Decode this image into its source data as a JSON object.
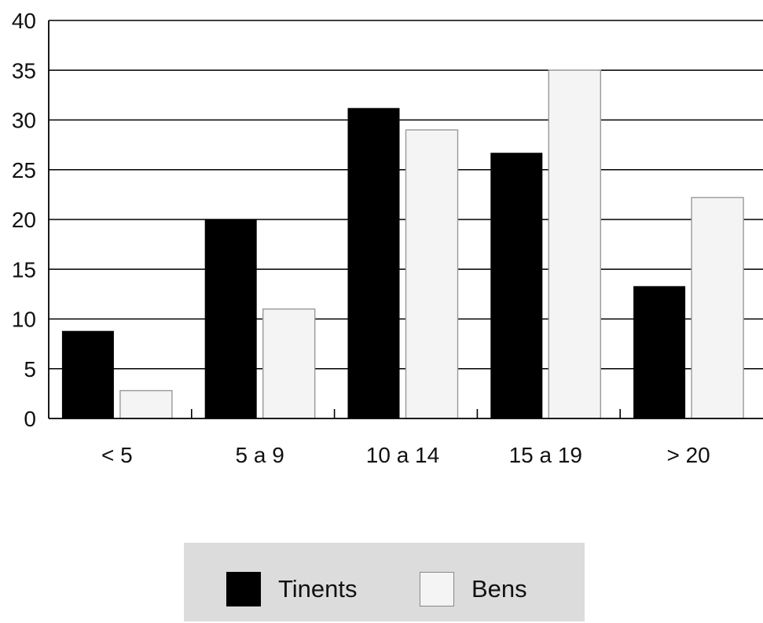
{
  "chart_data": {
    "type": "bar",
    "categories": [
      "< 5",
      "5 a 9",
      "10 a 14",
      "15 a 19",
      "> 20"
    ],
    "series": [
      {
        "name": "Tinents",
        "color": "#000000",
        "values": [
          8.8,
          20,
          31.2,
          26.7,
          13.3
        ]
      },
      {
        "name": "Bens",
        "color": "#f4f4f4",
        "values": [
          2.8,
          11,
          29,
          35,
          22.2
        ]
      }
    ],
    "yticks": [
      "0",
      "5",
      "10",
      "15",
      "20",
      "25",
      "30",
      "35",
      "40"
    ],
    "ylim": [
      0,
      40
    ],
    "grid": true,
    "title": "",
    "xlabel": "",
    "ylabel": "",
    "legend_position": "bottom",
    "legend_background": "#dcdcdc"
  }
}
